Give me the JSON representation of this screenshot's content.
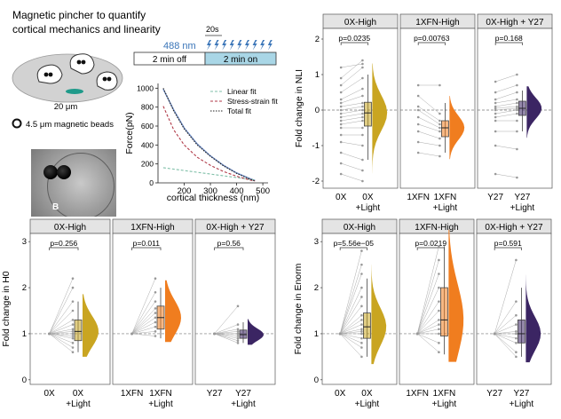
{
  "schematic": {
    "title_line1": "Magnetic pincher to quantify",
    "title_line2": "cortical mechanics and linearity",
    "scale_label": "20 μm",
    "bead_label": "4.5 μm magnetic beads",
    "micrograph_label": "B",
    "light_interval": "20s",
    "wavelength": "488 nm",
    "off_label": "2 min off",
    "on_label": "2 min on",
    "colors": {
      "dish": "#d2d2d2",
      "on_box": "#a9d6e6",
      "wavelength": "#3a75b8",
      "bead_mark": "#1f9a8a"
    }
  },
  "chart_data": [
    {
      "type": "line",
      "xlabel": "cortical thickness (nm)",
      "ylabel": "Force(pN)",
      "xlim": [
        100,
        520
      ],
      "ylim": [
        0,
        1050
      ],
      "xticks": [
        200,
        300,
        400,
        500
      ],
      "yticks": [
        0,
        200,
        400,
        600,
        800,
        1000
      ],
      "legend_position": "top-right",
      "series": [
        {
          "name": "Linear fit",
          "color": "#7fbfa8",
          "style": "dashed",
          "x": [
            120,
            470
          ],
          "y": [
            160,
            30
          ]
        },
        {
          "name": "Stress-strain fit",
          "color": "#b03a48",
          "style": "dashed",
          "x": [
            120,
            160,
            200,
            250,
            300,
            350,
            400,
            450,
            470
          ],
          "y": [
            810,
            560,
            400,
            270,
            185,
            120,
            70,
            30,
            20
          ]
        },
        {
          "name": "Total fit",
          "color": "#222222",
          "style": "dotted",
          "x": [
            120,
            160,
            200,
            250,
            300,
            350,
            400,
            450,
            470
          ],
          "y": [
            1000,
            760,
            570,
            400,
            280,
            180,
            100,
            40,
            20
          ]
        }
      ],
      "data_curve": {
        "color": "#4a6fb5",
        "x": [
          120,
          160,
          200,
          250,
          300,
          350,
          400,
          450,
          470
        ],
        "y": [
          990,
          770,
          580,
          410,
          285,
          185,
          105,
          45,
          25
        ]
      }
    },
    {
      "type": "scatter",
      "ylabel": "Fold change in NLI",
      "ylim": [
        -2.2,
        2.2
      ],
      "yticks": [
        -2,
        -1,
        0,
        1,
        2
      ],
      "reference_y": 0,
      "panels": [
        {
          "title": "0X-High",
          "p_label": "p=0.0235",
          "cat_pre": "0X",
          "cat_post": "0X",
          "post_sub": "+Light",
          "color": "#c9a521",
          "pre_y": [
            -1.8,
            -1.5,
            -1.2,
            -0.9,
            -0.7,
            -0.5,
            -0.4,
            -0.3,
            -0.2,
            -0.1,
            0,
            0.1,
            0.2,
            0.3,
            0.5,
            0.7,
            0.9,
            1.2
          ],
          "post_y": [
            -2.0,
            -1.7,
            -1.4,
            -1.0,
            -0.7,
            -0.5,
            -0.3,
            -0.2,
            -0.1,
            0,
            0.1,
            0.2,
            0.4,
            0.6,
            0.9,
            1.2,
            1.4,
            1.3
          ],
          "box": {
            "q1": -0.45,
            "median": -0.08,
            "q3": 0.22,
            "whisker_low": -1.4,
            "whisker_high": 1.0
          }
        },
        {
          "title": "1XFN-High",
          "p_label": "p=0.00763",
          "cat_pre": "1XFN",
          "cat_post": "1XFN",
          "post_sub": "+Light",
          "color": "#f07d1f",
          "pre_y": [
            -1.2,
            -0.9,
            -0.6,
            -0.4,
            -0.2,
            0,
            0.1,
            0.4,
            0.7
          ],
          "post_y": [
            -1.3,
            -1.0,
            -0.8,
            -0.6,
            -0.5,
            -0.4,
            -0.3,
            -0.1,
            0.7
          ],
          "box": {
            "q1": -0.75,
            "median": -0.5,
            "q3": -0.3,
            "whisker_low": -1.2,
            "whisker_high": 0.2
          }
        },
        {
          "title": "0X-High + Y27",
          "p_label": "p=0.168",
          "cat_pre": "Y27",
          "cat_post": "Y27",
          "post_sub": "+Light",
          "color": "#3b2563",
          "pre_y": [
            -1.8,
            -1.0,
            -0.6,
            -0.3,
            -0.2,
            -0.1,
            0,
            0.05,
            0.1,
            0.2,
            0.3,
            0.5,
            0.8
          ],
          "post_y": [
            -1.9,
            -1.1,
            -0.6,
            -0.3,
            -0.1,
            0,
            0.05,
            0.1,
            0.2,
            0.3,
            0.5,
            0.7,
            1.0
          ],
          "box": {
            "q1": -0.15,
            "median": 0.05,
            "q3": 0.25,
            "whisker_low": -0.6,
            "whisker_high": 0.55
          }
        }
      ]
    },
    {
      "type": "scatter",
      "ylabel": "Fold change in H0",
      "ylim": [
        -0.1,
        3.1
      ],
      "yticks": [
        0,
        1,
        2,
        3
      ],
      "reference_y": 1,
      "panels": [
        {
          "title": "0X-High",
          "p_label": "p=0.256",
          "cat_pre": "0X",
          "cat_post": "0X",
          "post_sub": "+Light",
          "color": "#c9a521",
          "pre_y": [
            1,
            1,
            1,
            1,
            1,
            1,
            1,
            1,
            1,
            1,
            1,
            1,
            1,
            1
          ],
          "post_y": [
            0.6,
            0.7,
            0.8,
            0.9,
            0.95,
            1.0,
            1.05,
            1.1,
            1.2,
            1.3,
            1.5,
            1.7,
            2.0,
            2.2
          ],
          "box": {
            "q1": 0.85,
            "median": 1.05,
            "q3": 1.3,
            "whisker_low": 0.6,
            "whisker_high": 1.7
          }
        },
        {
          "title": "1XFN-High",
          "p_label": "p=0.011",
          "cat_pre": "1XFN",
          "cat_post": "1XFN",
          "post_sub": "+Light",
          "color": "#f07d1f",
          "pre_y": [
            1,
            1,
            1,
            1,
            1,
            1,
            1,
            1,
            1,
            1
          ],
          "post_y": [
            0.95,
            1.05,
            1.15,
            1.25,
            1.35,
            1.45,
            1.55,
            1.7,
            1.9,
            2.2
          ],
          "box": {
            "q1": 1.1,
            "median": 1.35,
            "q3": 1.6,
            "whisker_low": 0.9,
            "whisker_high": 2.0
          }
        },
        {
          "title": "0X-High + Y27",
          "p_label": "p=0.56",
          "cat_pre": "Y27",
          "cat_post": "Y27",
          "post_sub": "+Light",
          "color": "#3b2563",
          "pre_y": [
            1,
            1,
            1,
            1,
            1,
            1,
            1,
            1,
            1,
            1
          ],
          "post_y": [
            0.8,
            0.85,
            0.9,
            0.95,
            1.0,
            1.0,
            1.05,
            1.1,
            1.2,
            1.6
          ],
          "box": {
            "q1": 0.9,
            "median": 0.98,
            "q3": 1.08,
            "whisker_low": 0.8,
            "whisker_high": 1.25
          }
        }
      ]
    },
    {
      "type": "scatter",
      "ylabel": "Fold change in Enorm",
      "ylim": [
        -0.1,
        3.1
      ],
      "yticks": [
        0,
        1,
        2,
        3
      ],
      "reference_y": 1,
      "panels": [
        {
          "title": "0X-High",
          "p_label": "p=5.56e−05",
          "cat_pre": "0X",
          "cat_post": "0X",
          "post_sub": "+Light",
          "color": "#c9a521",
          "pre_y": [
            1,
            1,
            1,
            1,
            1,
            1,
            1,
            1,
            1,
            1,
            1,
            1,
            1,
            1,
            1,
            1
          ],
          "post_y": [
            0.5,
            0.7,
            0.8,
            0.9,
            1.0,
            1.05,
            1.1,
            1.2,
            1.3,
            1.4,
            1.6,
            1.8,
            2.0,
            2.3,
            2.5,
            2.8
          ],
          "box": {
            "q1": 0.9,
            "median": 1.15,
            "q3": 1.45,
            "whisker_low": 0.5,
            "whisker_high": 2.2
          }
        },
        {
          "title": "1XFN-High",
          "p_label": "p=0.0219",
          "cat_pre": "1XFN",
          "cat_post": "1XFN",
          "post_sub": "+Light",
          "color": "#f07d1f",
          "pre_y": [
            1,
            1,
            1,
            1,
            1,
            1,
            1,
            1,
            1,
            1,
            1,
            1
          ],
          "post_y": [
            0.6,
            0.8,
            1.0,
            1.1,
            1.2,
            1.3,
            1.5,
            1.7,
            2.0,
            2.3,
            2.6,
            2.9
          ],
          "box": {
            "q1": 0.95,
            "median": 1.3,
            "q3": 2.0,
            "whisker_low": 0.55,
            "whisker_high": 2.9
          }
        },
        {
          "title": "0X-High + Y27",
          "p_label": "p=0.591",
          "cat_pre": "Y27",
          "cat_post": "Y27",
          "post_sub": "+Light",
          "color": "#3b2563",
          "pre_y": [
            1,
            1,
            1,
            1,
            1,
            1,
            1,
            1,
            1,
            1
          ],
          "post_y": [
            0.5,
            0.6,
            0.8,
            0.9,
            1.0,
            1.05,
            1.2,
            1.4,
            1.7,
            2.6
          ],
          "box": {
            "q1": 0.8,
            "median": 1.0,
            "q3": 1.3,
            "whisker_low": 0.5,
            "whisker_high": 2.0
          }
        }
      ]
    }
  ]
}
